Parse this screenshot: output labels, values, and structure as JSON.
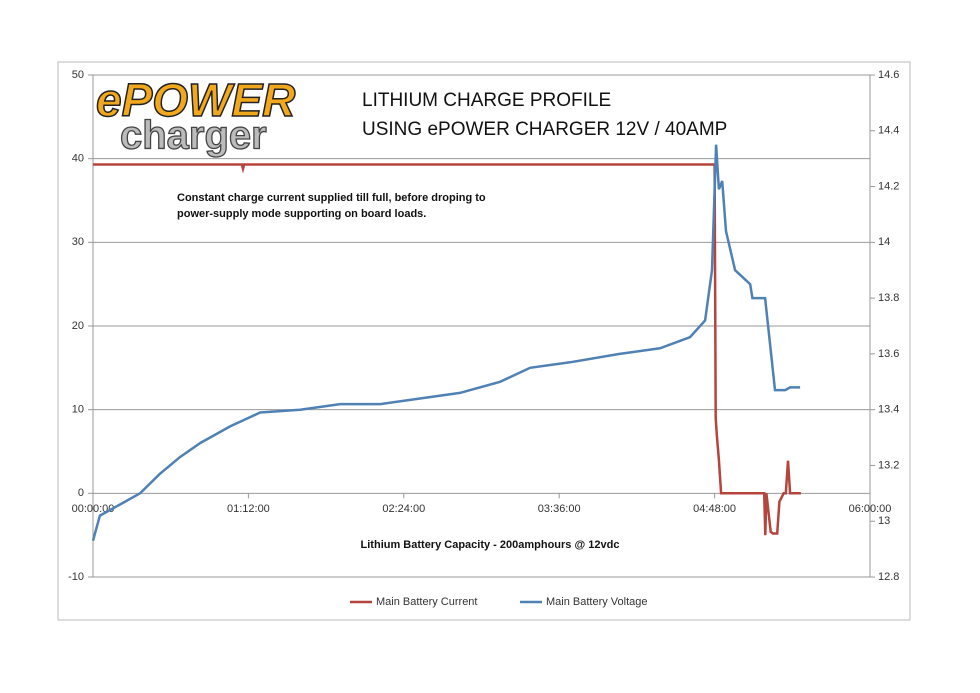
{
  "chart_data": {
    "type": "line",
    "logo": {
      "top": "ePOWER",
      "bottom": "charger"
    },
    "title": [
      "LITHIUM CHARGE PROFILE",
      "USING ePOWER CHARGER 12V / 40AMP"
    ],
    "annotations": [
      "Constant charge current supplied till full, before droping to",
      "power-supply mode supporting on board loads."
    ],
    "xlabel": "Lithium Battery Capacity - 200amphours @ 12vdc",
    "xlim": [
      0,
      360
    ],
    "xticks": [
      {
        "value": 0,
        "label": "00:00:00"
      },
      {
        "value": 72,
        "label": "01:12:00"
      },
      {
        "value": 144,
        "label": "02:24:00"
      },
      {
        "value": 216,
        "label": "03:36:00"
      },
      {
        "value": 288,
        "label": "04:48:00"
      },
      {
        "value": 360,
        "label": "06:00:00"
      }
    ],
    "ylim": [
      -10,
      50
    ],
    "yticks": [
      -10,
      0,
      10,
      20,
      30,
      40,
      50
    ],
    "y2lim": [
      12.8,
      14.6
    ],
    "y2ticks": [
      12.8,
      13,
      13.2,
      13.4,
      13.6,
      13.8,
      14,
      14.2,
      14.4,
      14.6
    ],
    "grid": true,
    "legend": "bottom",
    "series": [
      {
        "name": "Main Battery Current",
        "color": "#b5443c",
        "x": [
          0,
          69,
          69.5,
          70,
          288,
          288.5,
          289,
          290,
          291,
          311,
          311.5,
          312,
          314,
          315,
          317,
          318,
          320,
          321,
          322,
          323,
          324,
          328
        ],
        "values": [
          39.3,
          39.3,
          38.8,
          39.3,
          39.3,
          9,
          7,
          4,
          0,
          0,
          -5,
          0,
          -4.6,
          -4.8,
          -4.8,
          -1,
          0,
          0,
          3.9,
          0,
          0,
          0
        ]
      },
      {
        "name": "Main Battery Voltage",
        "color": "#4f81b4",
        "axis": "y2",
        "x": [
          0,
          3.2,
          12.5,
          21.8,
          31,
          40.3,
          49.6,
          63.5,
          77.4,
          96,
          114.5,
          133,
          151.5,
          170,
          188.6,
          202.5,
          221,
          244,
          262.7,
          276.6,
          283.6,
          286.8,
          288.7,
          290,
          291.5,
          293.3,
          297.5,
          304.5,
          305.5,
          311.4,
          316,
          320.7,
          323,
          327.6
        ],
        "values": [
          12.93,
          13.02,
          13.06,
          13.1,
          13.17,
          13.23,
          13.28,
          13.34,
          13.39,
          13.4,
          13.42,
          13.42,
          13.44,
          13.46,
          13.5,
          13.55,
          13.57,
          13.6,
          13.62,
          13.66,
          13.72,
          13.9,
          14.35,
          14.19,
          14.22,
          14.04,
          13.9,
          13.85,
          13.8,
          13.8,
          13.47,
          13.47,
          13.48,
          13.48
        ]
      }
    ]
  }
}
